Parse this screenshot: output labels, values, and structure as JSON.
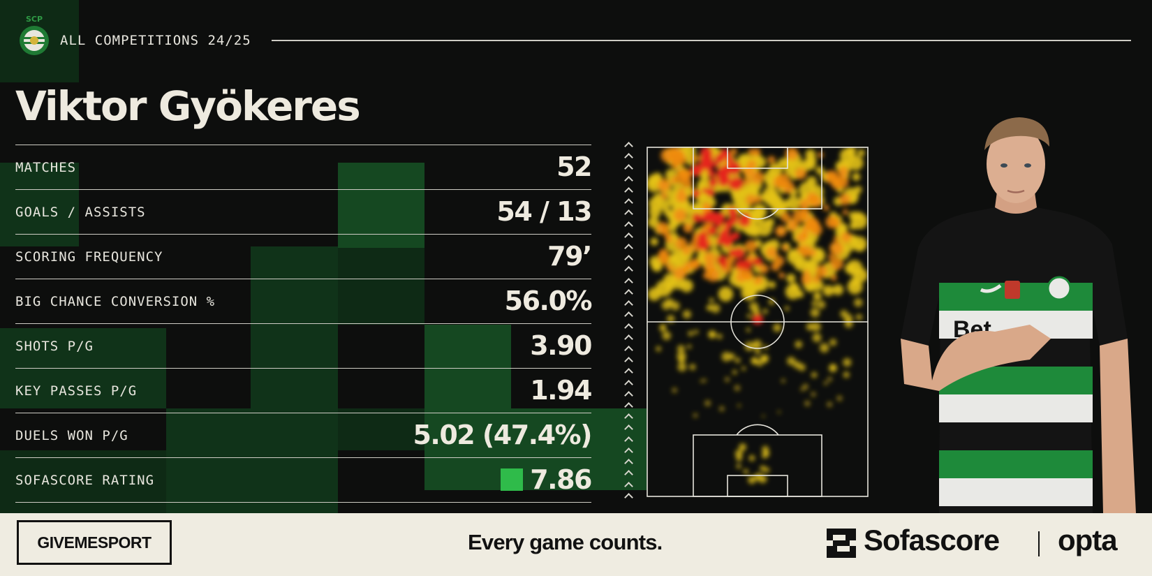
{
  "header": {
    "club_crest_text": "SCP",
    "competition": "ALL COMPETITIONS 24/25"
  },
  "player": {
    "name": "Viktor Gyökeres"
  },
  "stats": [
    {
      "label": "MATCHES",
      "value": "52"
    },
    {
      "label": "GOALS / ASSISTS",
      "value": "54 / 13"
    },
    {
      "label": "SCORING FREQUENCY",
      "value": "79’"
    },
    {
      "label": "BIG CHANCE CONVERSION %",
      "value": "56.0%"
    },
    {
      "label": "SHOTS P/G",
      "value": "3.90"
    },
    {
      "label": "KEY PASSES P/G",
      "value": "1.94"
    },
    {
      "label": "DUELS WON P/G",
      "value": "5.02 (47.4%)"
    },
    {
      "label": "SOFASCORE RATING",
      "value": "7.86",
      "badge_color": "#2fbb4a"
    }
  ],
  "footer": {
    "brand": "GIVEMESPORT",
    "tagline": "Every game counts.",
    "partner": "Sofascore",
    "partner2": "opta"
  },
  "colors": {
    "background": "#0d0e0d",
    "accent_green": "#1c5a2b",
    "text": "#eeeadf",
    "footer_bg": "#efece1",
    "rating_badge": "#2fbb4a"
  }
}
